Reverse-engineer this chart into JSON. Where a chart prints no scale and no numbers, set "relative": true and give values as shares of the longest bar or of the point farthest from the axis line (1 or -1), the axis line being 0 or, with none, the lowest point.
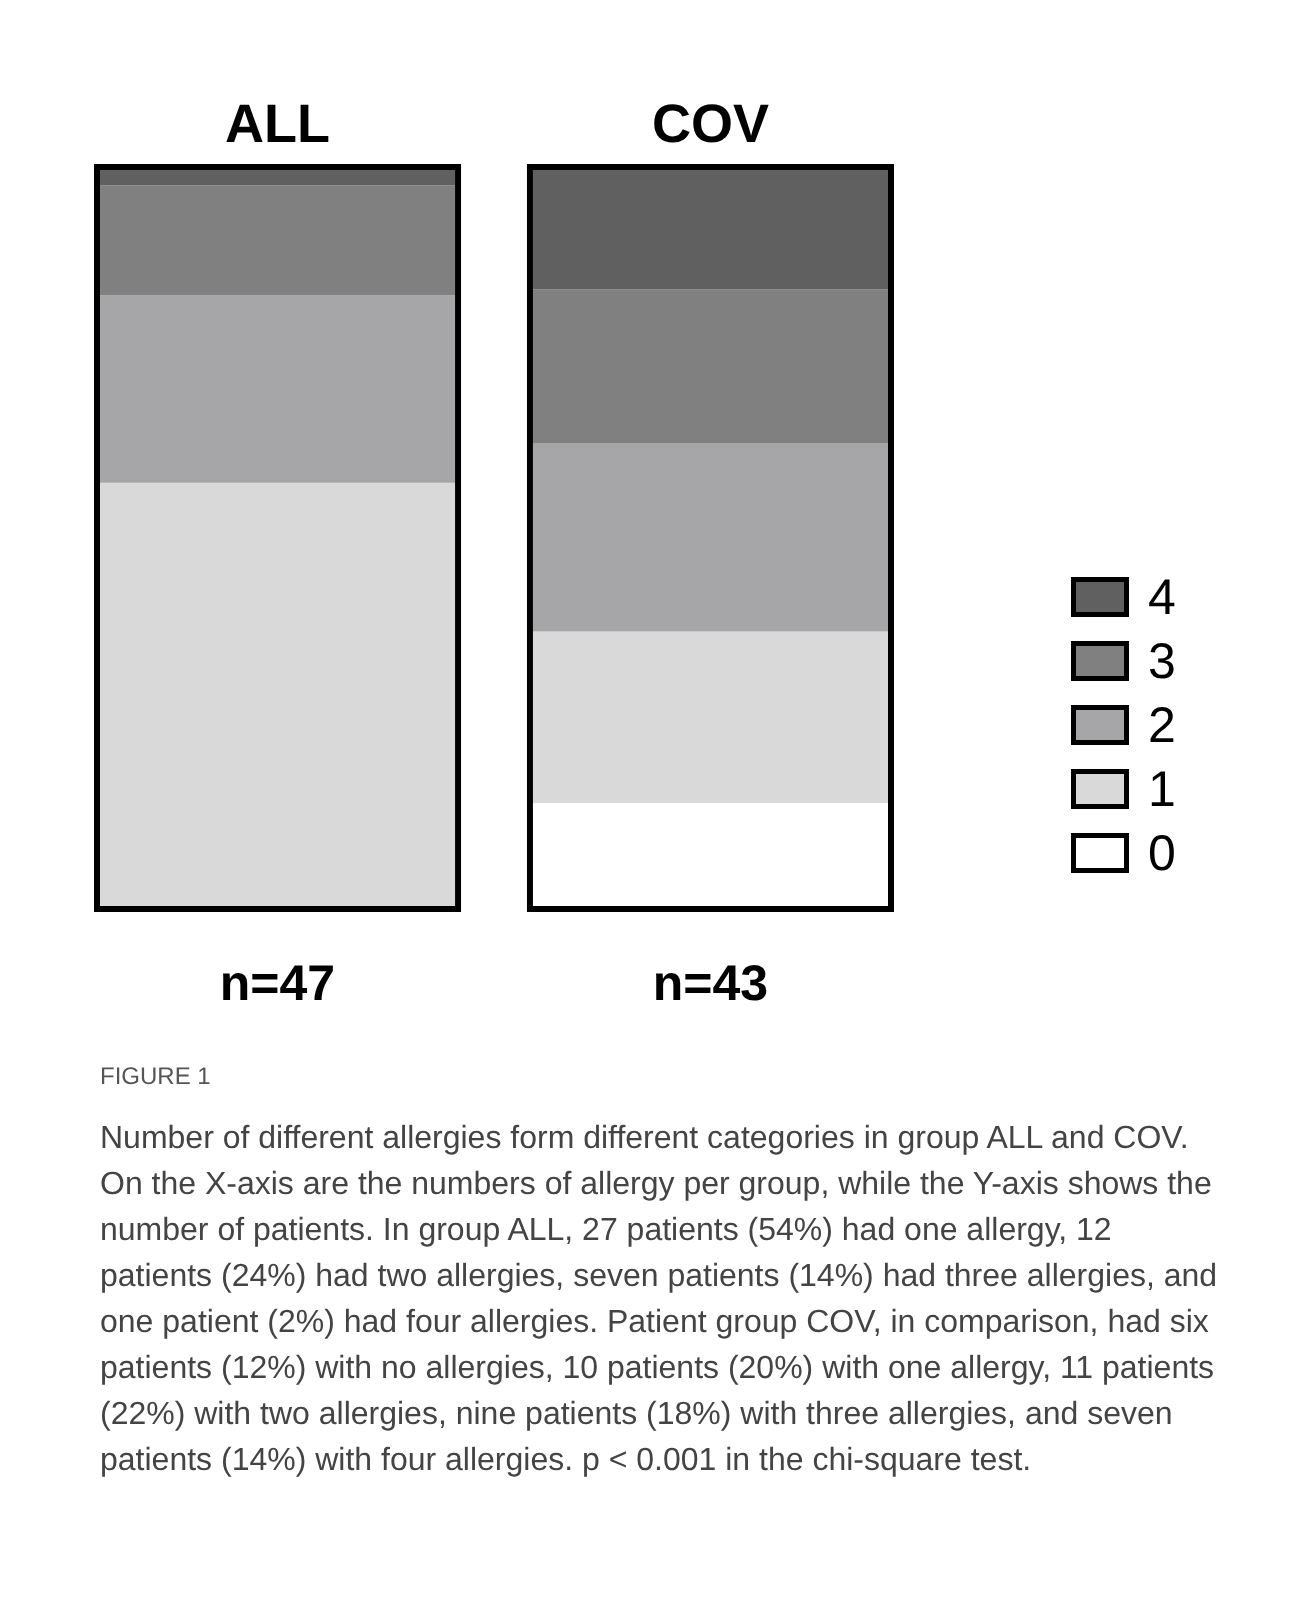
{
  "chart_data": {
    "type": "bar",
    "stacked": true,
    "relative": true,
    "categories": [
      "ALL",
      "COV"
    ],
    "series": [
      {
        "name": "0",
        "color": "#ffffff",
        "values": [
          0,
          0.14
        ]
      },
      {
        "name": "1",
        "color": "#d9d9d9",
        "values": [
          0.575,
          0.233
        ]
      },
      {
        "name": "2",
        "color": "#a6a6a8",
        "values": [
          0.255,
          0.256
        ]
      },
      {
        "name": "3",
        "color": "#808080",
        "values": [
          0.149,
          0.209
        ]
      },
      {
        "name": "4",
        "color": "#606060",
        "values": [
          0.021,
          0.162
        ]
      }
    ],
    "legend": "right",
    "annotations": [
      "n=47",
      "n=43",
      "FIGURE 1",
      "Number of different allergies form different categories in group ALL and COV. On the X-axis are the numbers of allergy per group, while the Y-axis shows the number of patients. In group ALL, 27 patients (54%) had one allergy, 12 patients (24%) had two allergies, seven patients (14%) had three allergies, and one patient (2%) had four allergies. Patient group COV, in comparison, had six patients (12%) with no allergies, 10 patients (20%) with one allergy, 11 patients (22%) with two allergies, nine patients (18%) with three allergies, and seven patients (14%) with four allergies. p < 0.001 in the chi-square test."
    ]
  }
}
